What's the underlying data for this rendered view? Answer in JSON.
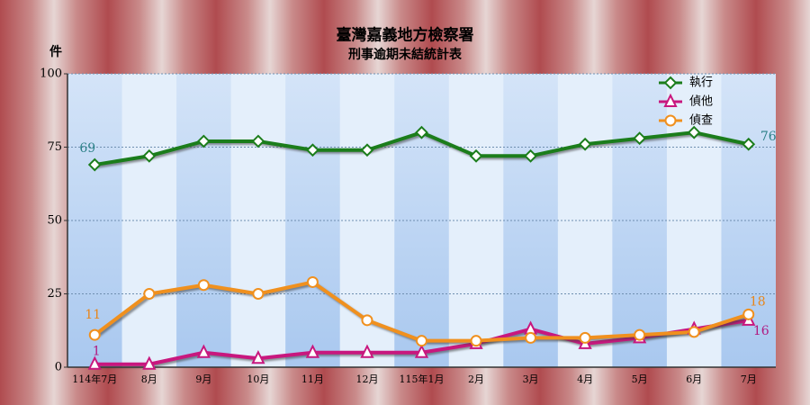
{
  "chart_data": {
    "type": "line",
    "title": "臺灣嘉義地方檢察署",
    "subtitle": "刑事逾期未結統計表",
    "y_label": "件",
    "categories": [
      "114年7月",
      "8月",
      "9月",
      "10月",
      "11月",
      "12月",
      "115年1月",
      "2月",
      "3月",
      "4月",
      "5月",
      "6月",
      "7月"
    ],
    "series": [
      {
        "name": "執行",
        "color": "#1b7d1b",
        "label_color": "#2a7f86",
        "marker": "diamond",
        "values": [
          69,
          72,
          77,
          77,
          74,
          74,
          80,
          72,
          72,
          76,
          78,
          80,
          76
        ]
      },
      {
        "name": "偵他",
        "color": "#c8177e",
        "label_color": "#b01a80",
        "marker": "triangle",
        "values": [
          1,
          1,
          5,
          3,
          5,
          5,
          5,
          8,
          13,
          8,
          10,
          13,
          16
        ]
      },
      {
        "name": "偵查",
        "color": "#f0901e",
        "label_color": "#e8861a",
        "marker": "circle",
        "values": [
          11,
          25,
          28,
          25,
          29,
          16,
          9,
          9,
          10,
          10,
          11,
          12,
          18
        ]
      }
    ],
    "data_labels": [
      0,
      12
    ],
    "ylim": [
      0,
      100
    ],
    "yticks": [
      0,
      25,
      50,
      75,
      100
    ],
    "grid": true,
    "legend": "top-right"
  }
}
